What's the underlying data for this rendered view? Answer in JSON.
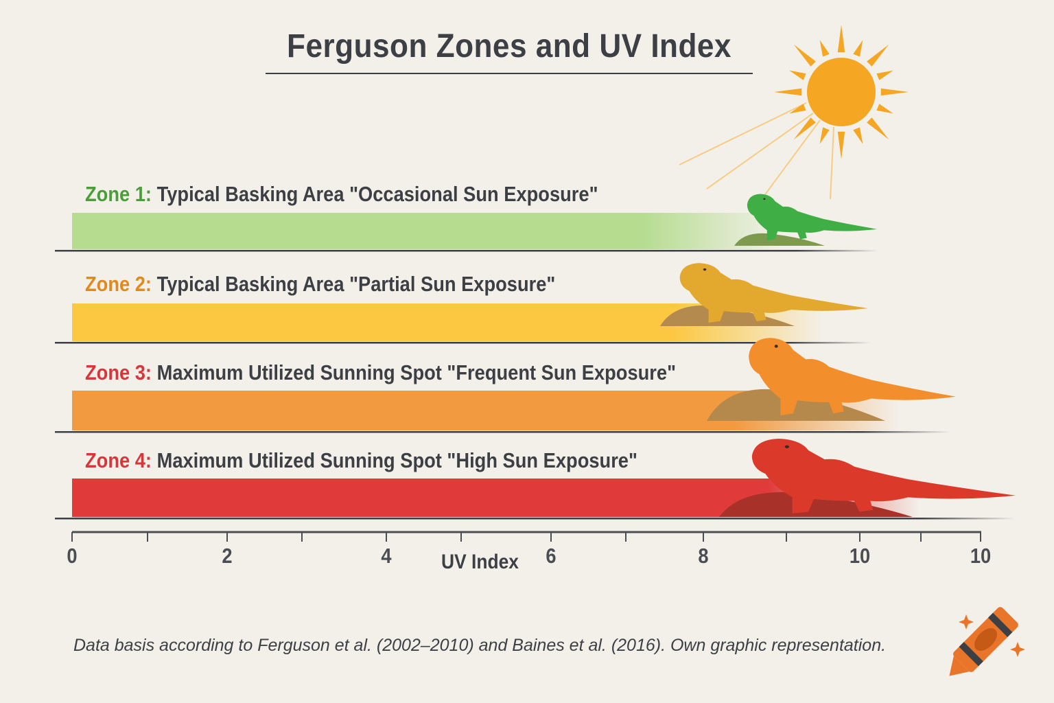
{
  "chart_data": {
    "type": "bar",
    "orientation": "horizontal",
    "title": "Ferguson Zones and UV Index",
    "xlabel": "UV Index",
    "x_tick_labels": [
      "0",
      "2",
      "4",
      "6",
      "8",
      "10",
      "10"
    ],
    "grid": false,
    "categories": [
      "Zone 1",
      "Zone 2",
      "Zone 3",
      "Zone 4"
    ],
    "zones": [
      {
        "name": "Zone 1:",
        "description": "Typical Basking Area \"Occasional Sun Exposure\"",
        "label_color": "#4a9e3a",
        "bar_color": "#b5dc8f",
        "lizard_color": "#3fae45",
        "rock_color": "#7d9a4e"
      },
      {
        "name": "Zone 2:",
        "description": "Typical Basking Area \"Partial Sun Exposure\"",
        "label_color": "#e08a1e",
        "bar_color": "#fcc842",
        "lizard_color": "#e3a82e",
        "rock_color": "#b58a4e"
      },
      {
        "name": "Zone 3:",
        "description": "Maximum Utilized Sunning Spot \"Frequent Sun Exposure\"",
        "label_color": "#d9363a",
        "bar_color": "#f29a40",
        "lizard_color": "#f28e2b",
        "rock_color": "#b5894c"
      },
      {
        "name": "Zone 4:",
        "description": "Maximum Utilized Sunning Spot \"High Sun Exposure\"",
        "label_color": "#d9363a",
        "bar_color": "#e03a3a",
        "lizard_color": "#db3a2a",
        "rock_color": "#a8322a"
      }
    ]
  },
  "footnote": "Data basis according to Ferguson et al. (2002–2010) and Baines et al. (2016). Own graphic representation.",
  "colors": {
    "sun": "#f5a623",
    "text": "#3c3f44",
    "background": "#f3f0ea",
    "crayon": "#e8752a"
  },
  "icons": [
    "sun-icon",
    "lizard-icon",
    "crayon-icon",
    "sparkle-icon"
  ]
}
